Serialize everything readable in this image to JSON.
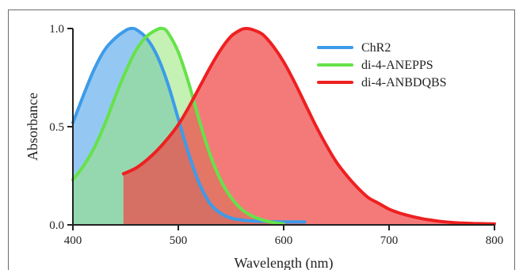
{
  "chart_data": {
    "type": "area",
    "title": "",
    "xlabel": "Wavelength (nm)",
    "ylabel": "Absorbance",
    "xlim": [
      400,
      800
    ],
    "ylim": [
      0.0,
      1.0
    ],
    "x_ticks": [
      400,
      500,
      600,
      700,
      800
    ],
    "x_tick_labels": [
      "400",
      "500",
      "600",
      "700",
      "800"
    ],
    "y_ticks": [
      0.0,
      0.5,
      1.0
    ],
    "y_tick_labels": [
      "0.0",
      "0.5",
      "1.0"
    ],
    "grid": false,
    "legend_position": "top-right",
    "series": [
      {
        "name": "ChR2",
        "color": "#3d9be9",
        "fill": "rgba(61,155,233,0.55)",
        "x": [
          400,
          410,
          420,
          430,
          440,
          450,
          455,
          460,
          470,
          480,
          490,
          500,
          510,
          520,
          530,
          540,
          550,
          560,
          570,
          580,
          590,
          600,
          610,
          620
        ],
        "y": [
          0.52,
          0.66,
          0.79,
          0.89,
          0.95,
          0.99,
          1.0,
          0.995,
          0.95,
          0.86,
          0.72,
          0.54,
          0.36,
          0.21,
          0.11,
          0.06,
          0.035,
          0.025,
          0.02,
          0.018,
          0.016,
          0.015,
          0.015,
          0.015
        ]
      },
      {
        "name": "di-4-ANEPPS",
        "color": "#66e24a",
        "fill": "rgba(150,230,120,0.55)",
        "x": [
          400,
          410,
          420,
          430,
          440,
          450,
          460,
          470,
          480,
          485,
          490,
          500,
          510,
          520,
          530,
          540,
          550,
          560,
          570,
          580,
          590,
          600
        ],
        "y": [
          0.23,
          0.3,
          0.39,
          0.51,
          0.65,
          0.78,
          0.89,
          0.96,
          0.995,
          1.0,
          0.98,
          0.88,
          0.72,
          0.53,
          0.36,
          0.23,
          0.14,
          0.08,
          0.045,
          0.025,
          0.012,
          0.005
        ]
      },
      {
        "name": "di-4-ANBDQBS",
        "color": "#ee2020",
        "fill": "rgba(240,70,70,0.72)",
        "x": [
          448,
          460,
          470,
          480,
          490,
          500,
          510,
          520,
          530,
          540,
          550,
          560,
          565,
          570,
          580,
          590,
          600,
          610,
          620,
          630,
          640,
          650,
          660,
          670,
          680,
          690,
          700,
          710,
          720,
          730,
          740,
          750,
          760,
          770,
          780,
          790,
          800
        ],
        "y": [
          0.26,
          0.29,
          0.33,
          0.38,
          0.44,
          0.51,
          0.6,
          0.7,
          0.8,
          0.89,
          0.96,
          0.995,
          1.0,
          0.995,
          0.97,
          0.91,
          0.83,
          0.73,
          0.62,
          0.51,
          0.41,
          0.32,
          0.25,
          0.19,
          0.14,
          0.11,
          0.08,
          0.06,
          0.045,
          0.033,
          0.024,
          0.017,
          0.012,
          0.009,
          0.007,
          0.006,
          0.005
        ]
      }
    ]
  }
}
